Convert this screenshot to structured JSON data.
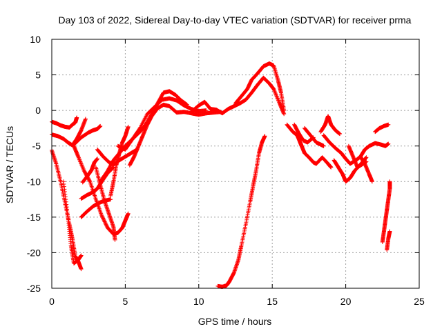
{
  "chart_data": {
    "type": "scatter",
    "title": "Day 103 of 2022, Sidereal Day-to-day VTEC variation (SDTVAR) for receiver prma",
    "xlabel": "GPS time / hours",
    "ylabel": "SDTVAR / TECUs",
    "xlim": [
      0,
      25
    ],
    "ylim": [
      -25,
      10
    ],
    "xticks": [
      "0",
      "5",
      "10",
      "15",
      "20",
      "25"
    ],
    "yticks": [
      "-25",
      "-20",
      "-15",
      "-10",
      "-5",
      "0",
      "5",
      "10"
    ],
    "grid": true,
    "marker": "+",
    "color": "#ff0000",
    "series": [
      {
        "points": [
          [
            0.0,
            -1.6
          ],
          [
            0.3,
            -1.8
          ],
          [
            0.6,
            -2.1
          ],
          [
            0.9,
            -2.3
          ],
          [
            1.2,
            -2.4
          ],
          [
            1.4,
            -2.0
          ],
          [
            1.6,
            -1.7
          ],
          [
            1.7,
            -1.0
          ]
        ]
      },
      {
        "points": [
          [
            0.0,
            -3.4
          ],
          [
            0.4,
            -3.6
          ],
          [
            0.8,
            -4.0
          ],
          [
            1.1,
            -4.5
          ],
          [
            1.4,
            -4.9
          ],
          [
            1.7,
            -4.0
          ],
          [
            2.0,
            -2.8
          ],
          [
            2.3,
            -1.2
          ]
        ]
      },
      {
        "points": [
          [
            1.5,
            -4.8
          ],
          [
            2.0,
            -3.8
          ],
          [
            2.5,
            -3.1
          ],
          [
            2.8,
            -2.8
          ],
          [
            3.1,
            -2.6
          ],
          [
            3.3,
            -2.2
          ]
        ]
      },
      {
        "points": [
          [
            0.0,
            -5.6
          ],
          [
            0.3,
            -7.5
          ],
          [
            0.6,
            -10.0
          ],
          [
            0.9,
            -13.0
          ],
          [
            1.2,
            -16.0
          ],
          [
            1.4,
            -18.0
          ],
          [
            1.6,
            -20.5
          ],
          [
            1.8,
            -21.2
          ],
          [
            2.0,
            -22.3
          ]
        ]
      },
      {
        "points": [
          [
            0.8,
            -10.0
          ],
          [
            1.1,
            -15.0
          ],
          [
            1.3,
            -19.0
          ],
          [
            1.5,
            -21.5
          ],
          [
            1.8,
            -21.0
          ],
          [
            2.0,
            -20.4
          ]
        ]
      },
      {
        "points": [
          [
            1.5,
            -5.0
          ],
          [
            1.8,
            -6.5
          ],
          [
            2.2,
            -8.5
          ],
          [
            2.6,
            -10.0
          ],
          [
            3.0,
            -12.5
          ],
          [
            3.4,
            -14.8
          ],
          [
            3.8,
            -16.5
          ],
          [
            4.2,
            -17.4
          ],
          [
            4.5,
            -17.2
          ],
          [
            4.8,
            -16.5
          ],
          [
            5.0,
            -15.5
          ],
          [
            5.2,
            -14.5
          ]
        ]
      },
      {
        "points": [
          [
            2.0,
            -15.0
          ],
          [
            2.4,
            -14.2
          ],
          [
            2.8,
            -13.5
          ],
          [
            3.2,
            -13.0
          ],
          [
            3.6,
            -12.7
          ],
          [
            4.0,
            -12.5
          ]
        ]
      },
      {
        "points": [
          [
            2.0,
            -12.4
          ],
          [
            2.4,
            -11.9
          ],
          [
            2.8,
            -11.5
          ],
          [
            3.1,
            -11.0
          ],
          [
            3.4,
            -10.0
          ],
          [
            3.8,
            -8.8
          ],
          [
            4.2,
            -8.0
          ]
        ]
      },
      {
        "points": [
          [
            2.1,
            -10.1
          ],
          [
            2.5,
            -9.0
          ],
          [
            2.7,
            -8.4
          ],
          [
            2.9,
            -7.3
          ],
          [
            3.1,
            -6.8
          ]
        ]
      },
      {
        "points": [
          [
            3.0,
            -8.0
          ],
          [
            3.3,
            -10.5
          ],
          [
            3.6,
            -12.8
          ],
          [
            3.9,
            -14.6
          ],
          [
            4.2,
            -16.4
          ],
          [
            4.3,
            -18.2
          ]
        ]
      },
      {
        "points": [
          [
            3.1,
            -5.5
          ],
          [
            3.5,
            -6.5
          ],
          [
            3.9,
            -7.3
          ],
          [
            4.2,
            -7.6
          ],
          [
            4.6,
            -7.0
          ],
          [
            5.0,
            -6.5
          ],
          [
            5.4,
            -6.0
          ],
          [
            5.8,
            -5.5
          ]
        ]
      },
      {
        "points": [
          [
            3.3,
            -10.0
          ],
          [
            3.8,
            -8.5
          ],
          [
            4.2,
            -7.0
          ],
          [
            4.6,
            -6.0
          ],
          [
            5.0,
            -5.0
          ],
          [
            5.5,
            -4.0
          ],
          [
            6.0,
            -3.0
          ],
          [
            6.4,
            -2.0
          ],
          [
            6.8,
            -0.5
          ],
          [
            7.2,
            1.0
          ],
          [
            7.6,
            2.5
          ],
          [
            8.0,
            2.7
          ],
          [
            8.4,
            2.2
          ],
          [
            8.8,
            1.4
          ],
          [
            9.2,
            0.8
          ]
        ]
      },
      {
        "points": [
          [
            4.0,
            -12.0
          ],
          [
            4.2,
            -10.0
          ],
          [
            4.4,
            -7.6
          ],
          [
            4.6,
            -6.0
          ],
          [
            4.8,
            -4.5
          ],
          [
            5.0,
            -3.6
          ],
          [
            5.2,
            -2.3
          ]
        ]
      },
      {
        "points": [
          [
            4.5,
            -5.0
          ],
          [
            5.0,
            -5.5
          ],
          [
            5.5,
            -4.0
          ],
          [
            6.0,
            -2.5
          ],
          [
            6.5,
            -0.5
          ],
          [
            7.0,
            0.5
          ],
          [
            7.5,
            1.5
          ],
          [
            8.0,
            1.7
          ],
          [
            8.5,
            1.4
          ],
          [
            9.0,
            0.7
          ],
          [
            9.5,
            0.2
          ],
          [
            10.0,
            -0.1
          ],
          [
            10.5,
            0.0
          ]
        ]
      },
      {
        "points": [
          [
            5.3,
            -7.7
          ],
          [
            5.6,
            -6.5
          ],
          [
            5.9,
            -5.0
          ],
          [
            6.2,
            -3.5
          ],
          [
            6.5,
            -2.0
          ],
          [
            6.8,
            -0.8
          ],
          [
            7.2,
            0.3
          ],
          [
            7.6,
            0.8
          ],
          [
            8.0,
            0.6
          ],
          [
            8.5,
            -0.3
          ],
          [
            9.0,
            -0.2
          ],
          [
            9.5,
            -0.4
          ],
          [
            10.0,
            -0.6
          ],
          [
            10.5,
            -0.4
          ],
          [
            11.0,
            -0.3
          ],
          [
            11.5,
            -0.2
          ]
        ]
      },
      {
        "points": [
          [
            9.5,
            -0.2
          ],
          [
            10.0,
            0.7
          ],
          [
            10.4,
            1.2
          ],
          [
            10.8,
            0.2
          ],
          [
            11.2,
            0.1
          ],
          [
            11.6,
            -0.4
          ],
          [
            12.0,
            0.2
          ],
          [
            12.4,
            0.6
          ],
          [
            12.8,
            1.0
          ],
          [
            13.2,
            1.5
          ],
          [
            13.6,
            2.5
          ],
          [
            14.0,
            3.6
          ],
          [
            14.4,
            4.6
          ],
          [
            14.8,
            3.8
          ],
          [
            15.1,
            3.0
          ],
          [
            15.5,
            1.0
          ],
          [
            15.8,
            -0.5
          ]
        ]
      },
      {
        "points": [
          [
            12.5,
            1.0
          ],
          [
            12.9,
            2.0
          ],
          [
            13.3,
            3.0
          ],
          [
            13.6,
            4.3
          ],
          [
            14.0,
            5.2
          ],
          [
            14.4,
            6.2
          ],
          [
            14.8,
            6.6
          ],
          [
            15.1,
            6.3
          ],
          [
            15.4,
            4.2
          ],
          [
            15.6,
            2.5
          ],
          [
            15.8,
            0.0
          ]
        ]
      },
      {
        "points": [
          [
            11.3,
            -24.7
          ],
          [
            11.6,
            -24.8
          ],
          [
            11.9,
            -24.6
          ],
          [
            12.1,
            -24.0
          ],
          [
            12.4,
            -22.8
          ],
          [
            12.7,
            -21.0
          ],
          [
            12.9,
            -19.0
          ],
          [
            13.2,
            -16.0
          ],
          [
            13.5,
            -12.8
          ],
          [
            13.7,
            -10.6
          ],
          [
            13.9,
            -8.5
          ],
          [
            14.1,
            -6.0
          ],
          [
            14.3,
            -4.5
          ],
          [
            14.5,
            -3.6
          ]
        ]
      },
      {
        "points": [
          [
            16.0,
            -2.0
          ],
          [
            16.4,
            -3.0
          ],
          [
            16.7,
            -3.5
          ],
          [
            16.9,
            -4.5
          ],
          [
            17.0,
            -5.0
          ],
          [
            17.2,
            -6.0
          ],
          [
            17.5,
            -6.6
          ],
          [
            17.8,
            -7.3
          ],
          [
            18.0,
            -7.5
          ],
          [
            18.4,
            -6.6
          ],
          [
            18.8,
            -7.5
          ],
          [
            19.0,
            -8.0
          ]
        ]
      },
      {
        "points": [
          [
            16.5,
            -2.0
          ],
          [
            16.8,
            -3.2
          ],
          [
            17.1,
            -4.2
          ],
          [
            17.4,
            -4.5
          ],
          [
            17.8,
            -3.8
          ]
        ]
      },
      {
        "points": [
          [
            17.2,
            -2.5
          ],
          [
            17.6,
            -3.5
          ],
          [
            18.0,
            -4.5
          ],
          [
            18.3,
            -4.8
          ],
          [
            18.5,
            -5.0
          ]
        ]
      },
      {
        "points": [
          [
            18.3,
            -3.0
          ],
          [
            18.6,
            -2.0
          ],
          [
            18.8,
            -0.8
          ],
          [
            19.0,
            -2.0
          ],
          [
            19.3,
            -2.8
          ],
          [
            19.6,
            -3.3
          ]
        ]
      },
      {
        "points": [
          [
            18.5,
            -3.5
          ],
          [
            18.9,
            -4.5
          ],
          [
            19.3,
            -5.3
          ],
          [
            19.7,
            -6.0
          ],
          [
            20.0,
            -6.8
          ],
          [
            20.3,
            -7.5
          ],
          [
            20.7,
            -7.0
          ],
          [
            21.0,
            -6.5
          ],
          [
            21.3,
            -7.5
          ],
          [
            21.6,
            -9.0
          ],
          [
            21.8,
            -10.0
          ]
        ]
      },
      {
        "points": [
          [
            19.2,
            -7.0
          ],
          [
            19.5,
            -8.0
          ],
          [
            19.8,
            -9.0
          ],
          [
            20.0,
            -10.0
          ],
          [
            20.3,
            -9.5
          ],
          [
            20.6,
            -8.5
          ],
          [
            21.0,
            -7.6
          ],
          [
            21.4,
            -6.6
          ]
        ]
      },
      {
        "points": [
          [
            20.2,
            -5.0
          ],
          [
            20.5,
            -6.5
          ],
          [
            20.8,
            -8.0
          ],
          [
            21.1,
            -7.6
          ],
          [
            21.4,
            -7.2
          ]
        ]
      },
      {
        "points": [
          [
            21.0,
            -6.5
          ],
          [
            21.3,
            -5.5
          ],
          [
            21.6,
            -5.0
          ],
          [
            22.0,
            -4.6
          ],
          [
            22.4,
            -4.8
          ],
          [
            22.7,
            -5.0
          ],
          [
            22.9,
            -4.7
          ]
        ]
      },
      {
        "points": [
          [
            22.0,
            -3.0
          ],
          [
            22.3,
            -2.5
          ],
          [
            22.6,
            -2.2
          ],
          [
            22.9,
            -2.0
          ]
        ]
      },
      {
        "points": [
          [
            22.5,
            -18.5
          ],
          [
            22.6,
            -17.0
          ],
          [
            22.7,
            -15.5
          ],
          [
            22.8,
            -14.0
          ],
          [
            22.9,
            -12.5
          ],
          [
            23.0,
            -11.0
          ],
          [
            23.0,
            -10.0
          ]
        ]
      },
      {
        "points": [
          [
            22.8,
            -19.6
          ],
          [
            22.9,
            -18.0
          ],
          [
            23.0,
            -17.0
          ]
        ]
      }
    ]
  }
}
